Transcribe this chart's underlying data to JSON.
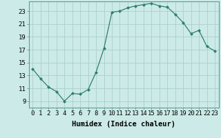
{
  "x": [
    0,
    1,
    2,
    3,
    4,
    5,
    6,
    7,
    8,
    9,
    10,
    11,
    12,
    13,
    14,
    15,
    16,
    17,
    18,
    19,
    20,
    21,
    22,
    23
  ],
  "y": [
    14.0,
    12.5,
    11.2,
    10.5,
    9.0,
    10.2,
    10.1,
    10.8,
    13.5,
    17.2,
    22.8,
    23.0,
    23.5,
    23.8,
    24.0,
    24.2,
    23.8,
    23.6,
    22.5,
    21.2,
    19.5,
    20.0,
    17.5,
    16.8
  ],
  "line_color": "#2e7d6e",
  "marker": "D",
  "marker_size": 2,
  "bg_color": "#cceae8",
  "grid_color": "#aacfcc",
  "xlabel": "Humidex (Indice chaleur)",
  "ylim": [
    8.0,
    24.5
  ],
  "xlim": [
    -0.5,
    23.5
  ],
  "yticks": [
    9,
    11,
    13,
    15,
    17,
    19,
    21,
    23
  ],
  "xticks": [
    0,
    1,
    2,
    3,
    4,
    5,
    6,
    7,
    8,
    9,
    10,
    11,
    12,
    13,
    14,
    15,
    16,
    17,
    18,
    19,
    20,
    21,
    22,
    23
  ],
  "xtick_labels": [
    "0",
    "1",
    "2",
    "3",
    "4",
    "5",
    "6",
    "7",
    "8",
    "9",
    "10",
    "11",
    "12",
    "13",
    "14",
    "15",
    "16",
    "17",
    "18",
    "19",
    "20",
    "21",
    "22",
    "23"
  ],
  "xlabel_fontsize": 7.5,
  "tick_fontsize": 6.5
}
